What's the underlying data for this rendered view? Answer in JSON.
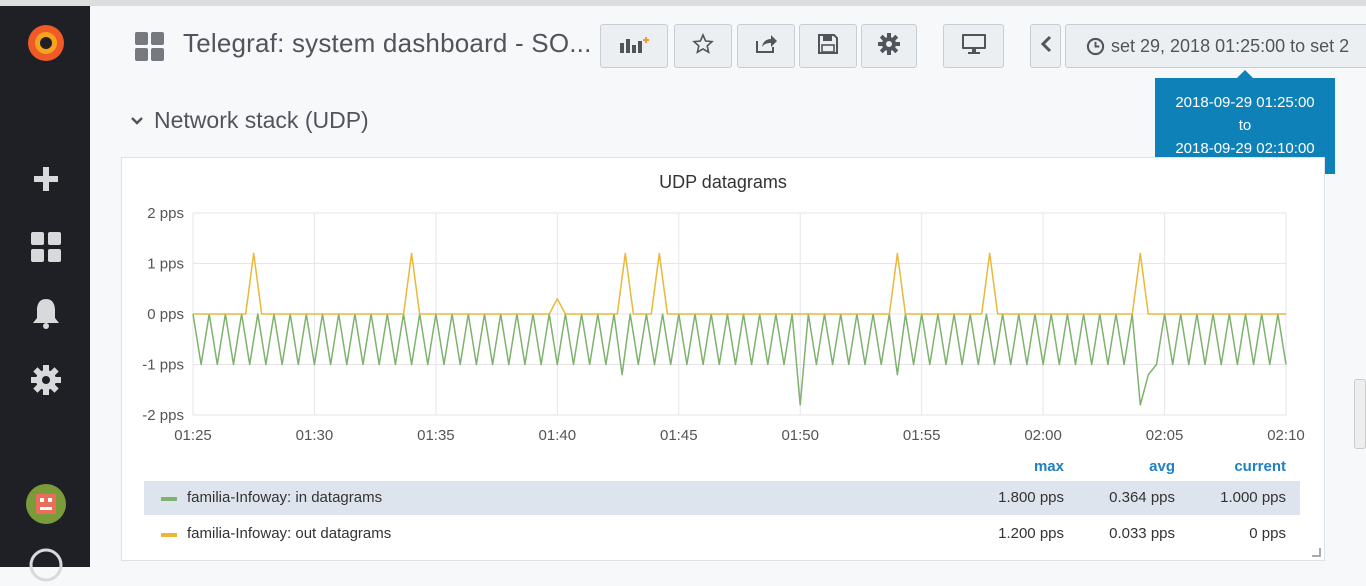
{
  "dashboard": {
    "title": "Telegraf: system dashboard - SO...",
    "time_range_label": "set 29, 2018 01:25:00 to set 2",
    "tooltip": {
      "from": "2018-09-29 01:25:00",
      "sep": "to",
      "to": "2018-09-29 02:10:00"
    }
  },
  "sidebar": {
    "icons": [
      "grafana-logo-icon",
      "plus-icon",
      "dashboards-icon",
      "bell-icon",
      "gear-icon",
      "avatar",
      "help-icon"
    ]
  },
  "toolbar": {
    "icons": [
      "add-panel-icon",
      "star-icon",
      "share-icon",
      "save-icon",
      "settings-icon",
      "tv-icon",
      "chevron-left-icon"
    ]
  },
  "row": {
    "title": "Network stack (UDP)"
  },
  "panel": {
    "title": "UDP datagrams",
    "legend": {
      "headers": {
        "max": "max",
        "avg": "avg",
        "current": "current"
      },
      "series": [
        {
          "name": "familia-Infoway: in datagrams",
          "color": "#7eb26d",
          "max": "1.800 pps",
          "avg": "0.364 pps",
          "current": "1.000 pps"
        },
        {
          "name": "familia-Infoway: out datagrams",
          "color": "#eab839",
          "max": "1.200 pps",
          "avg": "0.033 pps",
          "current": "0 pps"
        }
      ]
    }
  },
  "chart_data": {
    "type": "line",
    "title": "UDP datagrams",
    "xlabel": "",
    "ylabel": "",
    "x_ticks": [
      "01:25",
      "01:30",
      "01:35",
      "01:40",
      "01:45",
      "01:50",
      "01:55",
      "02:00",
      "02:05",
      "02:10"
    ],
    "y_ticks": [
      "2 pps",
      "1 pps",
      "0 pps",
      "-1 pps",
      "-2 pps"
    ],
    "ylim": [
      -2,
      2
    ],
    "x_range_minutes": [
      0,
      45
    ],
    "grid": true,
    "legend_placement": "bottom",
    "series": [
      {
        "name": "familia-Infoway: in datagrams",
        "color": "#7eb26d",
        "pattern": "oscillates between 0 and -1 pps every ~20s",
        "dips": [
          [
            17.5,
            -1.2
          ],
          [
            25,
            -1.8
          ],
          [
            29,
            -1.2
          ],
          [
            39,
            -1.8
          ],
          [
            39.3,
            -1.2
          ]
        ]
      },
      {
        "name": "familia-Infoway: out datagrams",
        "color": "#eab839",
        "baseline": 0,
        "spikes": [
          [
            2.5,
            1.2
          ],
          [
            9,
            1.2
          ],
          [
            15,
            0.3
          ],
          [
            17.8,
            1.2
          ],
          [
            19.2,
            1.2
          ],
          [
            29,
            1.2
          ],
          [
            32.8,
            1.2
          ],
          [
            39,
            1.2
          ]
        ]
      }
    ]
  }
}
